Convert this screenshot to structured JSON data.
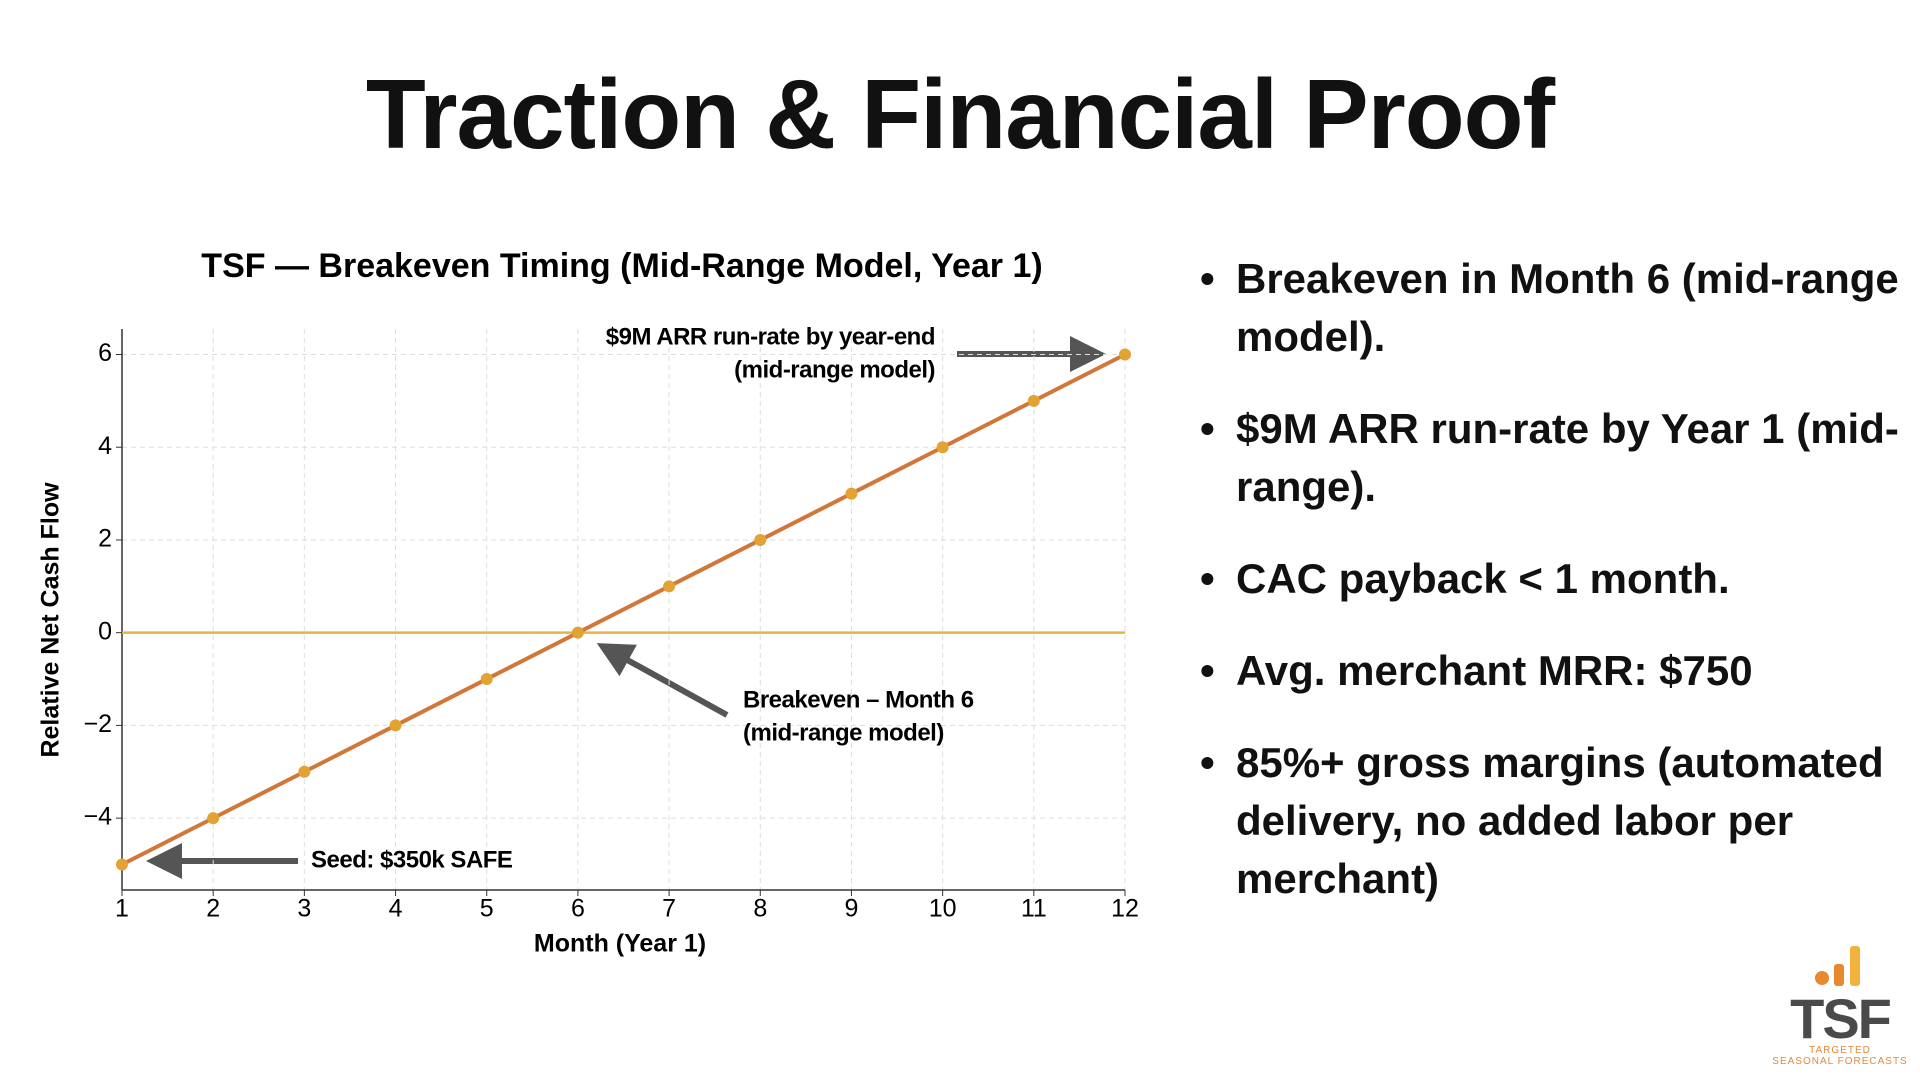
{
  "header": {
    "title": "Traction & Financial Proof"
  },
  "chart_data": {
    "type": "line",
    "title": "TSF — Breakeven Timing (Mid-Range Model, Year 1)",
    "x_label": "Month (Year 1)",
    "y_label": "Relative Net Cash Flow",
    "x": [
      1,
      2,
      3,
      4,
      5,
      6,
      7,
      8,
      9,
      10,
      11,
      12
    ],
    "series": [
      {
        "color": "#d2773a",
        "marker_color": "#e3a234",
        "values": [
          -5,
          -4,
          -3,
          -2,
          -1,
          0,
          1,
          2,
          3,
          4,
          5,
          6
        ]
      }
    ],
    "xlim": [
      1,
      12
    ],
    "ylim": [
      -5.55,
      6.55
    ],
    "xticks": [
      1,
      2,
      3,
      4,
      5,
      6,
      7,
      8,
      9,
      10,
      11,
      12
    ],
    "yticks": [
      {
        "value": -4,
        "label": "−4"
      },
      {
        "value": -2,
        "label": "−2"
      },
      0,
      2,
      4,
      6
    ],
    "grid": true,
    "reference_line": {
      "value": 0,
      "color": "#e6b24c"
    },
    "annotations": [
      {
        "lines": [
          "$9M ARR run-rate by year-end",
          "(mid-range model)"
        ]
      },
      {
        "lines": [
          "Breakeven – Month 6",
          "(mid-range model)"
        ]
      },
      {
        "lines": [
          "Seed: $350k SAFE"
        ]
      }
    ]
  },
  "bullets": [
    "Breakeven in Month 6 (mid-range model).",
    "$9M ARR run-rate by Year 1 (mid-range).",
    "CAC payback < 1 month.",
    "Avg. merchant MRR: $750",
    "85%+ gross margins (automated delivery, no added labor per merchant)"
  ],
  "logo": {
    "name": "TSF",
    "tagline": [
      "TARGETED",
      "SEASONAL FORECASTS"
    ]
  }
}
